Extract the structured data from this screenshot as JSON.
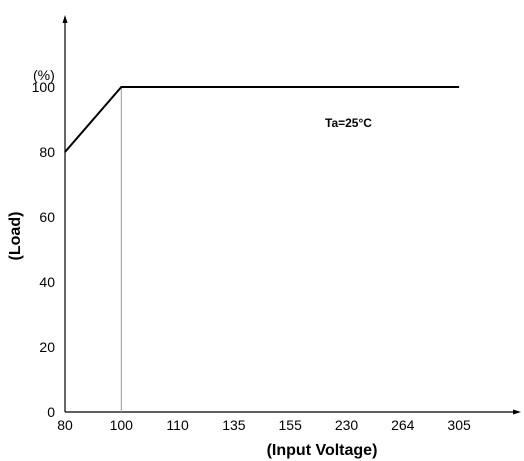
{
  "chart_data": {
    "type": "line",
    "x_ticks": [
      "80",
      "100",
      "110",
      "135",
      "155",
      "230",
      "264",
      "305"
    ],
    "y_ticks": [
      0,
      20,
      40,
      60,
      80,
      100
    ],
    "ylim": [
      0,
      120
    ],
    "y_unit": "(%)",
    "xlabel": "(Input Voltage)",
    "ylabel": "(Load)",
    "series": [
      {
        "x": [
          "80",
          "100",
          "305"
        ],
        "y": [
          80,
          100,
          100
        ]
      }
    ],
    "annotation": "Ta=25°C",
    "reference_line_x": "100"
  }
}
